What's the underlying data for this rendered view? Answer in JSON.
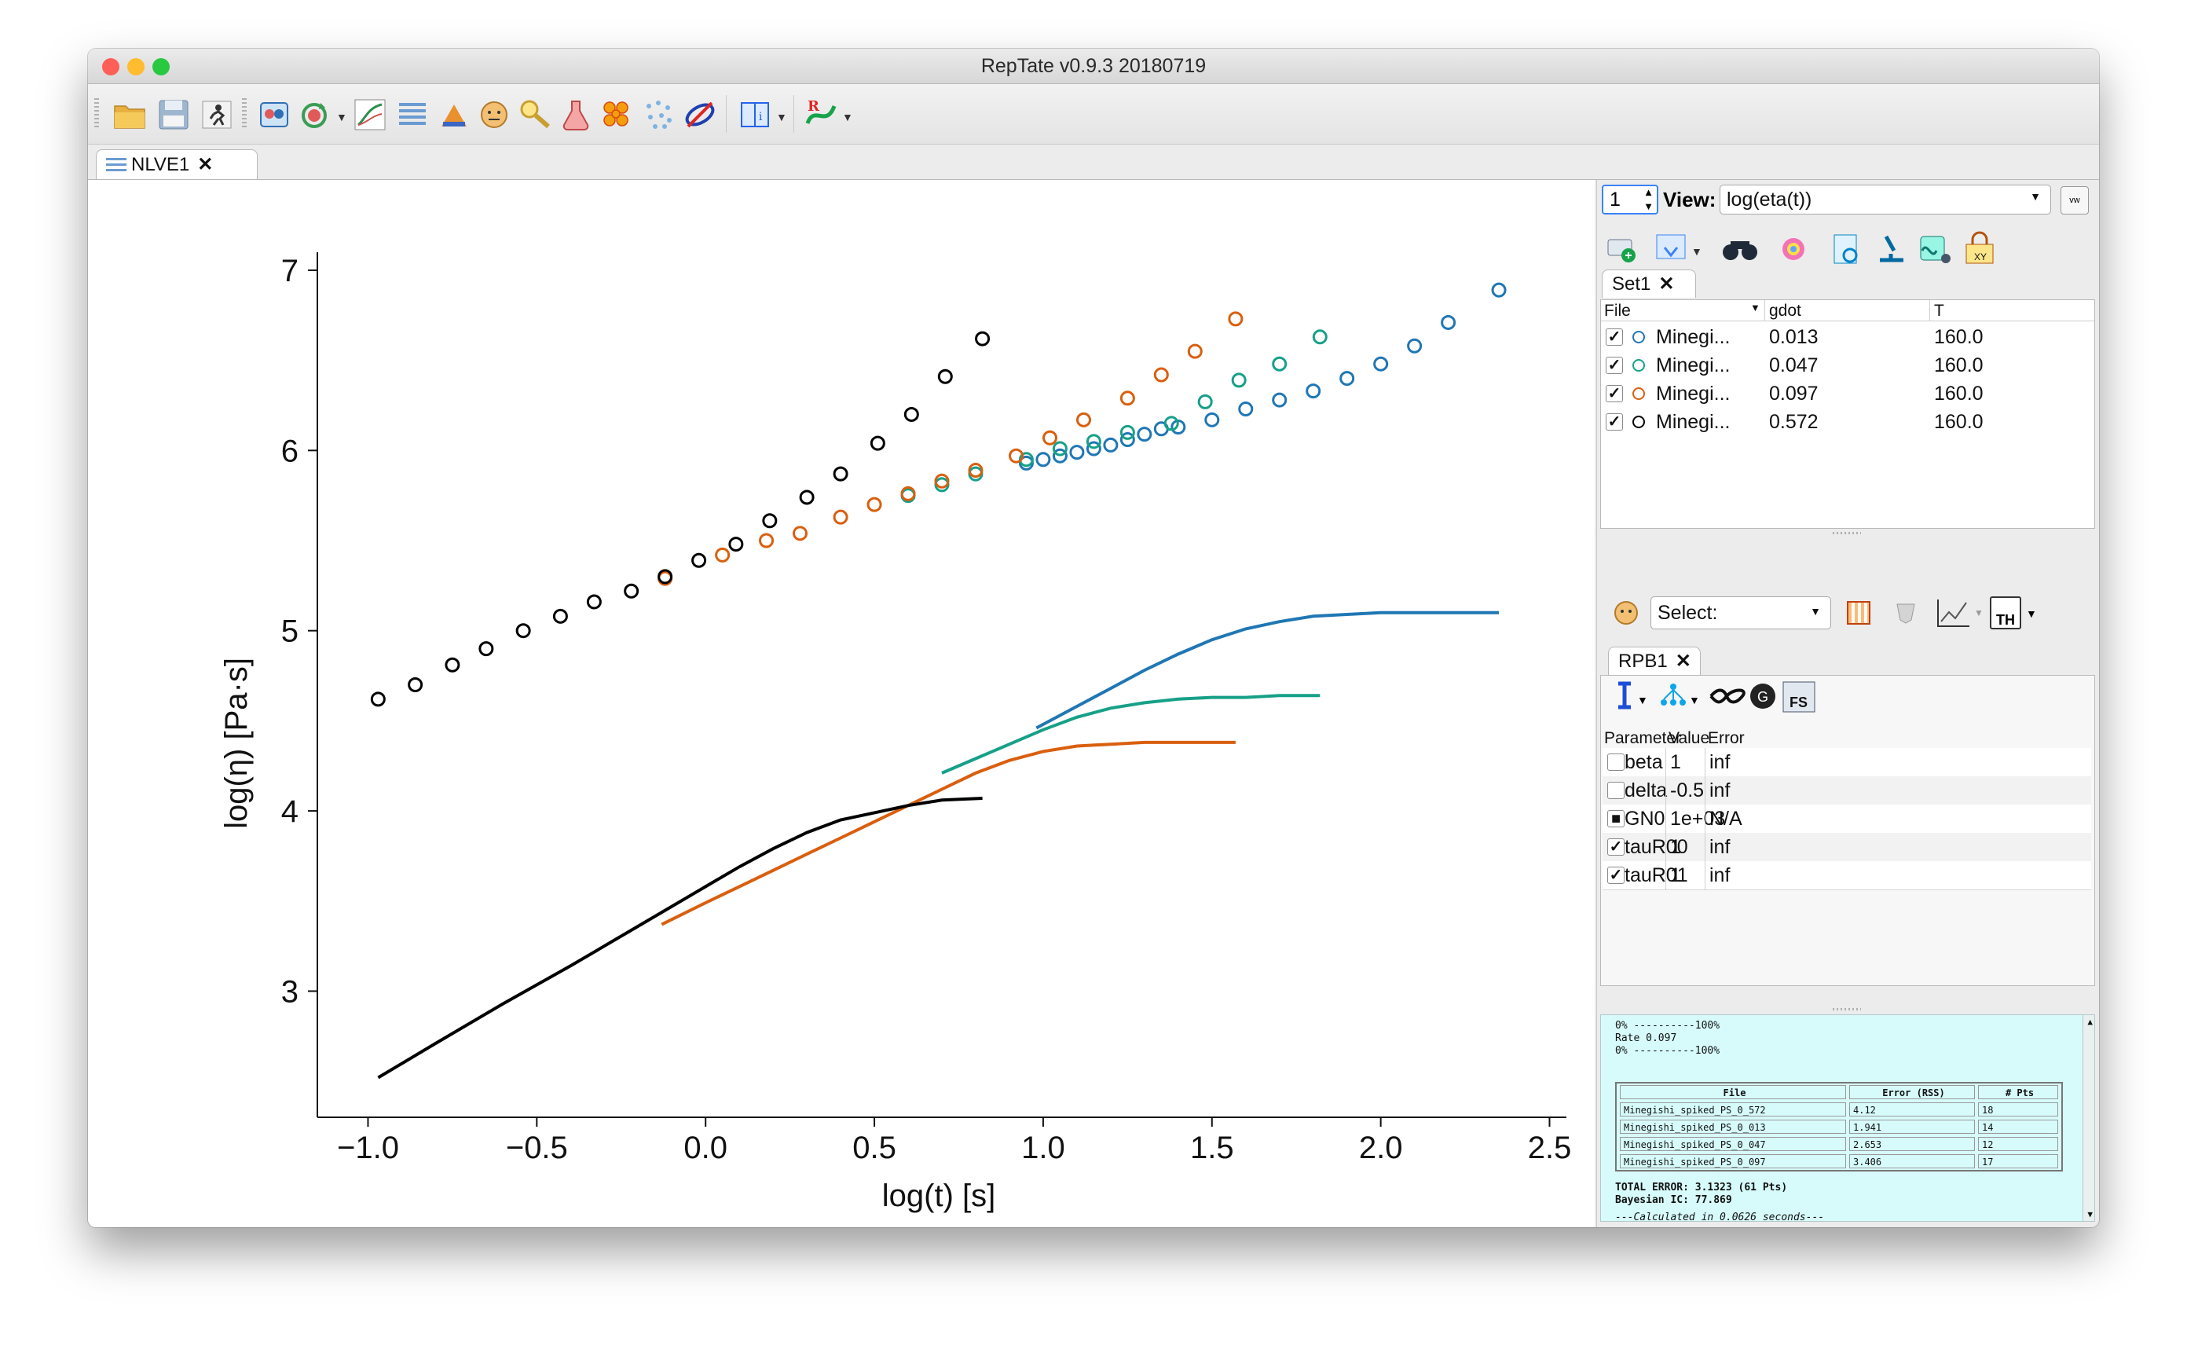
{
  "window": {
    "title": "RepTate v0.9.3 20180719",
    "traffic_lights": {
      "close": "#fe5f57",
      "minimize": "#febc2e",
      "zoom": "#28c840"
    }
  },
  "toolbar": {
    "icons": [
      "open-folder-icon",
      "save-icon",
      "run-icon",
      "new-application-icon",
      "reload-icon",
      "plot-view-icon",
      "stack-icon",
      "triangle-data-icon",
      "face-icon",
      "magnifier-icon",
      "flask-icon",
      "molecules-icon",
      "dots-icon",
      "orbit-icon",
      "book-icon",
      "reptate-logo-icon"
    ]
  },
  "tabs": {
    "main": {
      "label": "NLVE1",
      "close": "✕"
    }
  },
  "chart_data": {
    "type": "scatter",
    "xlabel": "log(t) [s]",
    "ylabel": "log(η) [Pa·s]",
    "xlim": [
      -1.15,
      2.55
    ],
    "ylim": [
      2.3,
      7.1
    ],
    "xticks": [
      "−1.0",
      "−0.5",
      "0.0",
      "0.5",
      "1.0",
      "1.5",
      "2.0",
      "2.5"
    ],
    "xtick_values": [
      -1.0,
      -0.5,
      0.0,
      0.5,
      1.0,
      1.5,
      2.0,
      2.5
    ],
    "yticks": [
      "3",
      "4",
      "5",
      "6",
      "7"
    ],
    "ytick_values": [
      3,
      4,
      5,
      6,
      7
    ],
    "grid": false,
    "series": [
      {
        "color": "#1f77b4",
        "marker": "circle-open",
        "x": [
          0.95,
          1.0,
          1.05,
          1.1,
          1.15,
          1.2,
          1.25,
          1.3,
          1.35,
          1.4,
          1.5,
          1.6,
          1.7,
          1.8,
          1.9,
          2.0,
          2.1,
          2.2,
          2.35
        ],
        "y": [
          5.93,
          5.95,
          5.97,
          5.99,
          6.01,
          6.03,
          6.06,
          6.09,
          6.12,
          6.13,
          6.17,
          6.23,
          6.28,
          6.33,
          6.4,
          6.48,
          6.58,
          6.71,
          6.89
        ]
      },
      {
        "color": "#17a088",
        "marker": "circle-open",
        "x": [
          0.6,
          0.7,
          0.8,
          0.95,
          1.05,
          1.15,
          1.25,
          1.38,
          1.48,
          1.58,
          1.7,
          1.82
        ],
        "y": [
          5.75,
          5.81,
          5.87,
          5.95,
          6.01,
          6.05,
          6.1,
          6.15,
          6.27,
          6.39,
          6.48,
          6.63
        ]
      },
      {
        "color": "#d95f0e",
        "marker": "circle-open",
        "x": [
          -0.12,
          0.05,
          0.18,
          0.28,
          0.4,
          0.5,
          0.6,
          0.7,
          0.8,
          0.92,
          1.02,
          1.12,
          1.25,
          1.35,
          1.45,
          1.57
        ],
        "y": [
          5.29,
          5.42,
          5.5,
          5.54,
          5.63,
          5.7,
          5.76,
          5.83,
          5.89,
          5.97,
          6.07,
          6.17,
          6.29,
          6.42,
          6.55,
          6.73
        ]
      },
      {
        "color": "#000000",
        "marker": "circle-open",
        "x": [
          -0.97,
          -0.86,
          -0.75,
          -0.65,
          -0.54,
          -0.43,
          -0.33,
          -0.22,
          -0.12,
          -0.02,
          0.09,
          0.19,
          0.3,
          0.4,
          0.51,
          0.61,
          0.71,
          0.82
        ],
        "y": [
          4.62,
          4.7,
          4.81,
          4.9,
          5.0,
          5.08,
          5.16,
          5.22,
          5.3,
          5.39,
          5.48,
          5.61,
          5.74,
          5.87,
          6.04,
          6.2,
          6.41,
          6.62
        ]
      },
      {
        "color": "#1f77b4",
        "marker": "line",
        "x": [
          0.98,
          1.1,
          1.2,
          1.3,
          1.4,
          1.5,
          1.6,
          1.7,
          1.8,
          1.9,
          2.0,
          2.1,
          2.2,
          2.35
        ],
        "y": [
          4.46,
          4.58,
          4.68,
          4.78,
          4.87,
          4.95,
          5.01,
          5.05,
          5.08,
          5.09,
          5.1,
          5.1,
          5.1,
          5.1
        ]
      },
      {
        "color": "#17a088",
        "marker": "line",
        "x": [
          0.7,
          0.8,
          0.9,
          1.0,
          1.1,
          1.2,
          1.3,
          1.4,
          1.5,
          1.6,
          1.7,
          1.82
        ],
        "y": [
          4.21,
          4.29,
          4.37,
          4.45,
          4.52,
          4.57,
          4.6,
          4.62,
          4.63,
          4.63,
          4.64,
          4.64
        ]
      },
      {
        "color": "#d95f0e",
        "marker": "line",
        "x": [
          -0.13,
          0.0,
          0.1,
          0.2,
          0.3,
          0.4,
          0.5,
          0.6,
          0.7,
          0.8,
          0.9,
          1.0,
          1.1,
          1.2,
          1.3,
          1.57
        ],
        "y": [
          3.37,
          3.49,
          3.58,
          3.67,
          3.76,
          3.85,
          3.94,
          4.03,
          4.12,
          4.21,
          4.28,
          4.33,
          4.36,
          4.37,
          4.38,
          4.38
        ]
      },
      {
        "color": "#000000",
        "marker": "line",
        "x": [
          -0.97,
          -0.8,
          -0.6,
          -0.4,
          -0.2,
          0.0,
          0.1,
          0.2,
          0.3,
          0.4,
          0.5,
          0.6,
          0.7,
          0.82
        ],
        "y": [
          2.52,
          2.71,
          2.93,
          3.14,
          3.36,
          3.58,
          3.69,
          3.79,
          3.88,
          3.95,
          3.99,
          4.03,
          4.06,
          4.07
        ]
      }
    ]
  },
  "view": {
    "label": "View:",
    "value": "log(eta(t))",
    "spinner": "1"
  },
  "dataset": {
    "tab": "Set1",
    "close": "✕",
    "columns": [
      "File",
      "gdot",
      "T"
    ],
    "rows": [
      {
        "file": "Minegi...",
        "gdot": "0.013",
        "t": "160.0",
        "color": "#1f77b4",
        "checked": "✓"
      },
      {
        "file": "Minegi...",
        "gdot": "0.047",
        "t": "160.0",
        "color": "#17a088",
        "checked": "✓"
      },
      {
        "file": "Minegi...",
        "gdot": "0.097",
        "t": "160.0",
        "color": "#d95f0e",
        "checked": "✓"
      },
      {
        "file": "Minegi...",
        "gdot": "0.572",
        "t": "160.0",
        "color": "#000000",
        "checked": "✓"
      }
    ]
  },
  "theory": {
    "select_label": "Select:",
    "tab": "RPB1",
    "close": "✕",
    "columns": [
      "Parameter",
      "Value",
      "Error"
    ],
    "params": [
      {
        "name": "beta",
        "value": "1",
        "error": "inf",
        "state": ""
      },
      {
        "name": "delta",
        "value": "-0.5",
        "error": "inf",
        "state": ""
      },
      {
        "name": "GN0",
        "value": "1e+03",
        "error": "N/A",
        "state": "■"
      },
      {
        "name": "tauR00",
        "value": "1",
        "error": "inf",
        "state": "✓"
      },
      {
        "name": "tauR01",
        "value": "1",
        "error": "inf",
        "state": "✓"
      }
    ]
  },
  "log": {
    "lines": [
      "0% ----------100%",
      "Rate 0.097",
      "0% ----------100%"
    ],
    "table_header": [
      "File",
      "Error (RSS)",
      "# Pts"
    ],
    "table_rows": [
      [
        "Minegishi_spiked_PS_0_572",
        "4.12",
        "18"
      ],
      [
        "Minegishi_spiked_PS_0_013",
        "1.941",
        "14"
      ],
      [
        "Minegishi_spiked_PS_0_047",
        "2.653",
        "12"
      ],
      [
        "Minegishi_spiked_PS_0_097",
        "3.406",
        "17"
      ]
    ],
    "total_error": "TOTAL ERROR: 3.1323 (61 Pts)",
    "bayesian": "Bayesian IC: 77.869",
    "calc": "---Calculated in 0.0626 seconds---"
  }
}
